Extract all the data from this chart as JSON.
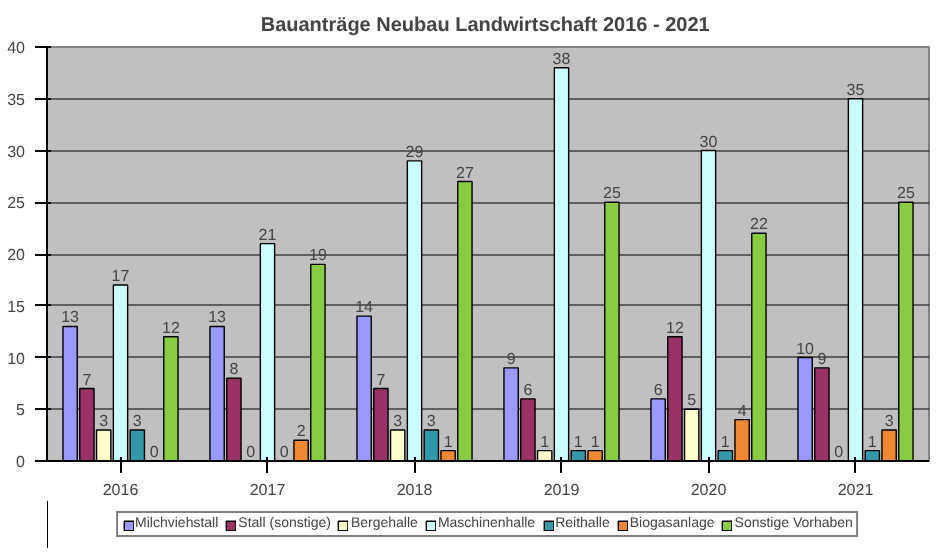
{
  "chart_data": {
    "type": "bar",
    "title": "Bauanträge Neubau Landwirtschaft  2016 - 2021",
    "categories": [
      "2016",
      "2017",
      "2018",
      "2019",
      "2020",
      "2021"
    ],
    "series": [
      {
        "name": "Milchviehstall",
        "color": "#9999ff",
        "values": [
          13,
          13,
          14,
          9,
          6,
          10
        ]
      },
      {
        "name": "Stall (sonstige)",
        "color": "#993366",
        "values": [
          7,
          8,
          7,
          6,
          12,
          9
        ]
      },
      {
        "name": "Bergehalle",
        "color": "#ffffcc",
        "values": [
          3,
          0,
          3,
          1,
          5,
          0
        ]
      },
      {
        "name": "Maschinenhalle",
        "color": "#ccffff",
        "values": [
          17,
          21,
          29,
          38,
          30,
          35
        ]
      },
      {
        "name": "Reithalle",
        "color": "#3399aa",
        "values": [
          3,
          0,
          3,
          1,
          1,
          1
        ]
      },
      {
        "name": "Biogasanlage",
        "color": "#ee8833",
        "values": [
          0,
          2,
          1,
          1,
          4,
          3
        ]
      },
      {
        "name": "Sonstige Vorhaben",
        "color": "#88cc44",
        "values": [
          12,
          19,
          27,
          25,
          22,
          25
        ]
      }
    ],
    "ylim": [
      0,
      40
    ],
    "yticks": [
      0,
      5,
      10,
      15,
      20,
      25,
      30,
      35,
      40
    ],
    "grid": "y",
    "legend": "bottom",
    "data_labels": true
  }
}
